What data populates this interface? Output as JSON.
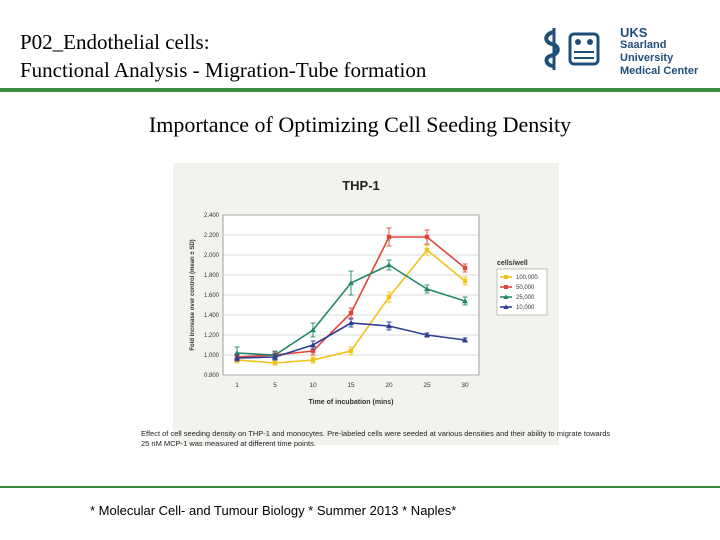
{
  "header": {
    "title_line1": "P02_Endothelial cells:",
    "title_line2": "Functional Analysis - Migration-Tube formation",
    "logo_line1": "UKS",
    "logo_line2": "Saarland University",
    "logo_line3": "Medical Center"
  },
  "subtitle": "Importance of Optimizing Cell Seeding Density",
  "caption": "Effect of cell seeding density on THP-1 and monocytes. Pre-labeled cells were seeded at various densities and their ability to migrate towards 25 nM MCP-1 was measured at different time points.",
  "footer": "* Molecular Cell- and Tumour Biology * Summer 2013 * Naples*",
  "colors": {
    "accent_green": "#3d8c3d",
    "logo_blue": "#1f4e79"
  },
  "chart_data": {
    "type": "line",
    "title": "THP-1",
    "xlabel": "Time of incubation (mins)",
    "ylabel": "Fold increase over control (mean ± SD)",
    "categories": [
      "1",
      "5",
      "10",
      "15",
      "20",
      "25",
      "30"
    ],
    "ylim": [
      0.8,
      2.4
    ],
    "yticks": [
      "0.800",
      "1.000",
      "1.200",
      "1.400",
      "1.600",
      "1.800",
      "2.000",
      "2.200",
      "2.400"
    ],
    "legend_title": "cells/well",
    "legend_position": "right",
    "series": [
      {
        "name": "100,000",
        "color": "#f2c21b",
        "marker": "square",
        "values": [
          0.95,
          0.92,
          0.95,
          1.04,
          1.58,
          2.05,
          1.74
        ],
        "errors": [
          0.03,
          0.02,
          0.03,
          0.04,
          0.05,
          0.05,
          0.04
        ]
      },
      {
        "name": "50,000",
        "color": "#e0453a",
        "marker": "square",
        "values": [
          0.98,
          1.0,
          1.04,
          1.42,
          2.18,
          2.18,
          1.87
        ],
        "errors": [
          0.03,
          0.03,
          0.04,
          0.05,
          0.09,
          0.07,
          0.04
        ]
      },
      {
        "name": "25,000",
        "color": "#25886a",
        "marker": "triangle",
        "values": [
          1.02,
          1.0,
          1.25,
          1.72,
          1.9,
          1.66,
          1.54
        ],
        "errors": [
          0.06,
          0.04,
          0.07,
          0.12,
          0.05,
          0.04,
          0.04
        ]
      },
      {
        "name": "10,000",
        "color": "#2f3f96",
        "marker": "triangle",
        "values": [
          0.97,
          0.98,
          1.1,
          1.32,
          1.29,
          1.2,
          1.15
        ],
        "errors": [
          0.03,
          0.03,
          0.04,
          0.04,
          0.04,
          0.02,
          0.02
        ]
      }
    ]
  }
}
